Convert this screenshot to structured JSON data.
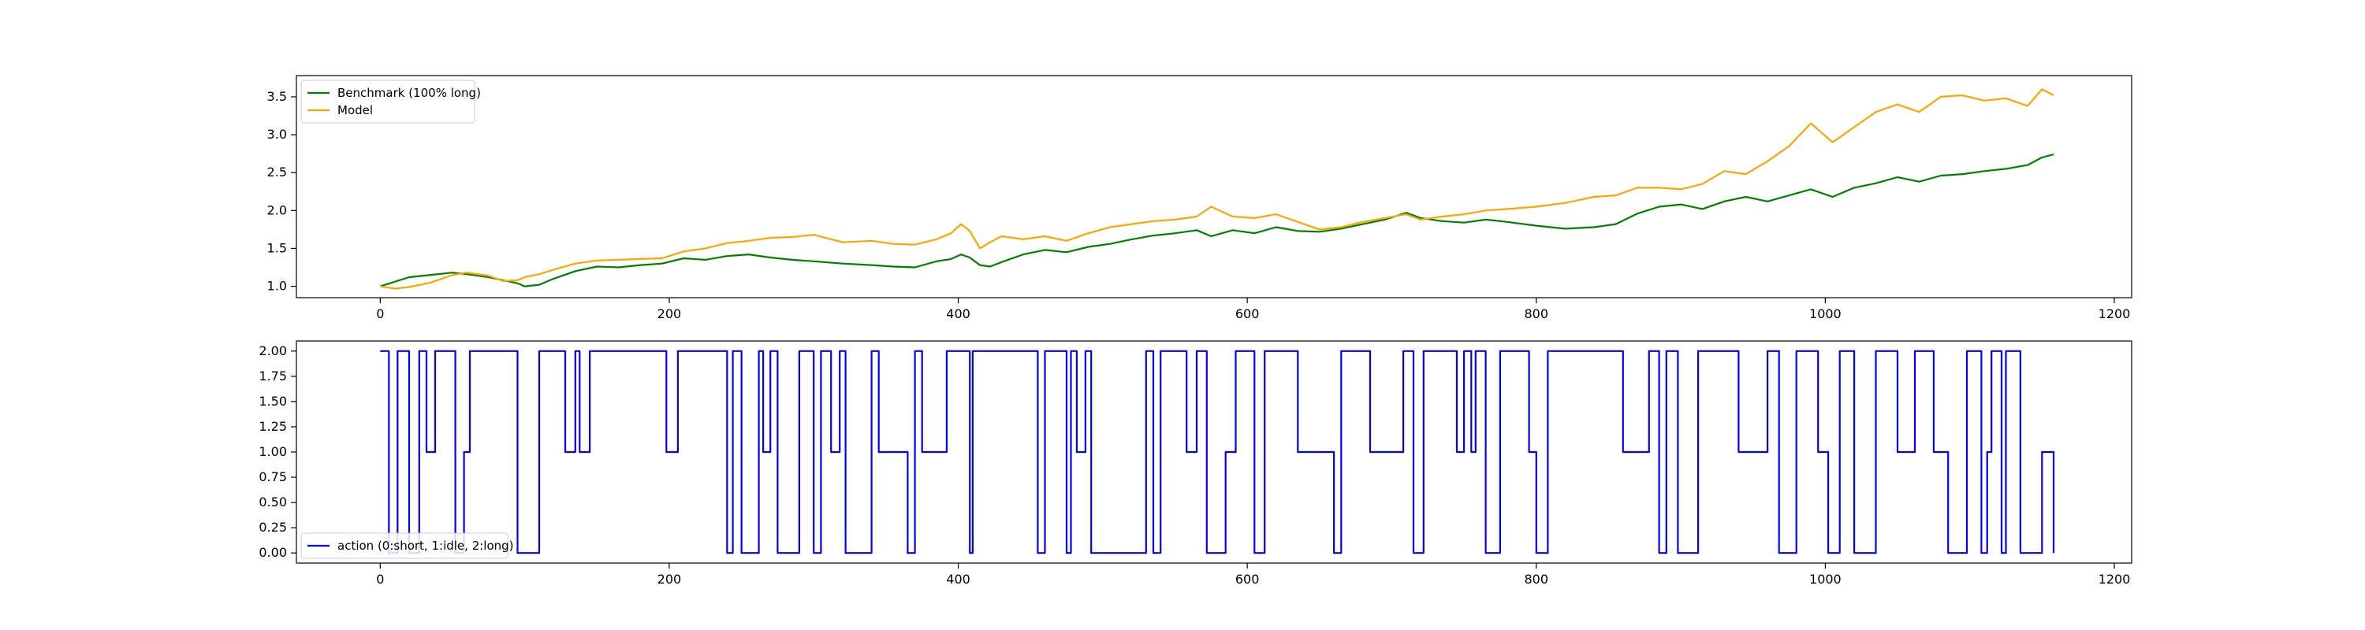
{
  "chart_data": [
    {
      "type": "line",
      "title": "",
      "xlabel": "",
      "ylabel": "",
      "xlim": [
        -58,
        1212
      ],
      "ylim": [
        0.85,
        3.78
      ],
      "xticks": [
        0,
        200,
        400,
        600,
        800,
        1000,
        1200
      ],
      "yticks": [
        1.0,
        1.5,
        2.0,
        2.5,
        3.0,
        3.5
      ],
      "ytick_labels": [
        "1.0",
        "1.5",
        "2.0",
        "2.5",
        "3.0",
        "3.5"
      ],
      "grid": false,
      "legend_position": "upper-left",
      "series": [
        {
          "name": "Benchmark (100% long)",
          "color": "#008000",
          "x": [
            0,
            10,
            20,
            35,
            50,
            60,
            75,
            85,
            95,
            100,
            110,
            120,
            135,
            150,
            165,
            180,
            195,
            210,
            225,
            240,
            255,
            270,
            285,
            300,
            320,
            340,
            355,
            370,
            385,
            395,
            402,
            408,
            415,
            422,
            430,
            445,
            460,
            475,
            490,
            505,
            520,
            535,
            550,
            565,
            575,
            590,
            605,
            620,
            635,
            650,
            665,
            680,
            695,
            710,
            720,
            735,
            750,
            765,
            780,
            800,
            820,
            840,
            855,
            870,
            885,
            900,
            915,
            930,
            945,
            960,
            975,
            990,
            1005,
            1020,
            1035,
            1050,
            1065,
            1080,
            1095,
            1110,
            1125,
            1140,
            1150,
            1158
          ],
          "y": [
            1.0,
            1.06,
            1.12,
            1.15,
            1.18,
            1.16,
            1.12,
            1.08,
            1.04,
            1.0,
            1.02,
            1.1,
            1.2,
            1.26,
            1.25,
            1.28,
            1.3,
            1.37,
            1.35,
            1.4,
            1.42,
            1.38,
            1.35,
            1.33,
            1.3,
            1.28,
            1.26,
            1.25,
            1.33,
            1.36,
            1.42,
            1.38,
            1.28,
            1.26,
            1.32,
            1.42,
            1.48,
            1.45,
            1.52,
            1.56,
            1.62,
            1.67,
            1.7,
            1.74,
            1.66,
            1.74,
            1.7,
            1.78,
            1.73,
            1.72,
            1.76,
            1.82,
            1.88,
            1.97,
            1.9,
            1.86,
            1.84,
            1.88,
            1.85,
            1.8,
            1.76,
            1.78,
            1.82,
            1.96,
            2.05,
            2.08,
            2.02,
            2.12,
            2.18,
            2.12,
            2.2,
            2.28,
            2.18,
            2.3,
            2.36,
            2.44,
            2.38,
            2.46,
            2.48,
            2.52,
            2.55,
            2.6,
            2.7,
            2.74
          ]
        },
        {
          "name": "Model",
          "color": "#FFA500",
          "x": [
            0,
            10,
            20,
            35,
            50,
            60,
            75,
            85,
            95,
            100,
            110,
            120,
            135,
            150,
            165,
            180,
            195,
            210,
            225,
            240,
            255,
            270,
            285,
            300,
            320,
            340,
            355,
            370,
            385,
            395,
            402,
            408,
            415,
            422,
            430,
            445,
            460,
            475,
            490,
            505,
            520,
            535,
            550,
            565,
            575,
            590,
            605,
            620,
            635,
            650,
            665,
            680,
            695,
            710,
            720,
            735,
            750,
            765,
            780,
            800,
            820,
            840,
            855,
            870,
            885,
            900,
            915,
            930,
            945,
            960,
            975,
            990,
            1005,
            1020,
            1035,
            1050,
            1065,
            1080,
            1095,
            1110,
            1125,
            1140,
            1150,
            1158
          ],
          "y": [
            1.0,
            0.97,
            0.99,
            1.05,
            1.15,
            1.18,
            1.14,
            1.07,
            1.08,
            1.12,
            1.16,
            1.22,
            1.3,
            1.34,
            1.35,
            1.36,
            1.37,
            1.46,
            1.5,
            1.57,
            1.6,
            1.64,
            1.65,
            1.68,
            1.58,
            1.6,
            1.56,
            1.55,
            1.62,
            1.7,
            1.82,
            1.73,
            1.5,
            1.58,
            1.66,
            1.62,
            1.66,
            1.6,
            1.7,
            1.78,
            1.82,
            1.86,
            1.88,
            1.92,
            2.05,
            1.92,
            1.9,
            1.95,
            1.85,
            1.75,
            1.78,
            1.85,
            1.9,
            1.95,
            1.88,
            1.92,
            1.95,
            2.0,
            2.02,
            2.05,
            2.1,
            2.18,
            2.2,
            2.3,
            2.3,
            2.28,
            2.35,
            2.52,
            2.48,
            2.65,
            2.85,
            3.15,
            2.9,
            3.1,
            3.3,
            3.4,
            3.3,
            3.5,
            3.52,
            3.45,
            3.48,
            3.38,
            3.6,
            3.52
          ]
        }
      ]
    },
    {
      "type": "line",
      "title": "",
      "xlabel": "",
      "ylabel": "",
      "xlim": [
        -58,
        1212
      ],
      "ylim": [
        -0.1,
        2.1
      ],
      "xticks": [
        0,
        200,
        400,
        600,
        800,
        1000,
        1200
      ],
      "yticks": [
        0.0,
        0.25,
        0.5,
        0.75,
        1.0,
        1.25,
        1.5,
        1.75,
        2.0
      ],
      "ytick_labels": [
        "0.00",
        "0.25",
        "0.50",
        "0.75",
        "1.00",
        "1.25",
        "1.50",
        "1.75",
        "2.00"
      ],
      "grid": false,
      "legend_position": "lower-left",
      "series": [
        {
          "name": "action (0:short, 1:idle, 2:long)",
          "color": "#0000FF",
          "step_x": [
            0,
            6,
            12,
            20,
            27,
            32,
            38,
            52,
            58,
            62,
            95,
            110,
            128,
            135,
            138,
            145,
            198,
            206,
            240,
            244,
            250,
            262,
            265,
            270,
            275,
            290,
            300,
            305,
            312,
            318,
            322,
            340,
            345,
            365,
            370,
            375,
            392,
            408,
            410,
            455,
            460,
            475,
            478,
            482,
            488,
            492,
            530,
            535,
            540,
            558,
            565,
            572,
            585,
            592,
            605,
            612,
            635,
            660,
            665,
            685,
            708,
            715,
            722,
            745,
            750,
            755,
            758,
            765,
            775,
            795,
            800,
            808,
            860,
            878,
            885,
            890,
            898,
            912,
            940,
            960,
            968,
            980,
            995,
            1002,
            1010,
            1020,
            1035,
            1050,
            1062,
            1075,
            1085,
            1098,
            1108,
            1112,
            1115,
            1122,
            1125,
            1135,
            1150,
            1158
          ],
          "step_y": [
            2,
            0,
            2,
            0,
            2,
            1,
            2,
            0,
            1,
            2,
            0,
            2,
            1,
            2,
            1,
            2,
            1,
            2,
            0,
            2,
            0,
            2,
            1,
            2,
            0,
            2,
            0,
            2,
            1,
            2,
            0,
            2,
            1,
            0,
            2,
            1,
            2,
            0,
            2,
            0,
            2,
            0,
            2,
            1,
            2,
            0,
            2,
            0,
            2,
            1,
            2,
            0,
            1,
            2,
            0,
            2,
            1,
            0,
            2,
            1,
            2,
            0,
            2,
            1,
            2,
            1,
            2,
            0,
            2,
            1,
            0,
            2,
            1,
            2,
            0,
            2,
            0,
            2,
            1,
            2,
            0,
            2,
            1,
            0,
            2,
            0,
            2,
            1,
            2,
            1,
            0,
            2,
            0,
            1,
            2,
            0,
            2,
            0,
            1,
            0
          ]
        }
      ]
    }
  ]
}
